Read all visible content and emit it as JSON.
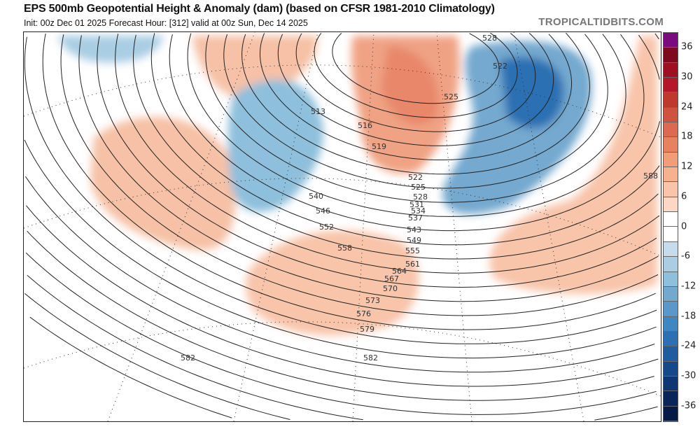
{
  "header": {
    "title": "EPS 500mb Geopotential Height & Anomaly (dam) (based on CFSR 1981-2010 Climatology)",
    "subtitle": "Init: 00z Dec 01 2025   Forecast Hour: [312]   valid at 00z Sun, Dec 14 2025",
    "brand": "TROPICALTIDBITS.COM"
  },
  "colorbar": {
    "ticks": [
      "36",
      "30",
      "24",
      "18",
      "12",
      "6",
      "0",
      "-6",
      "-12",
      "-18",
      "-24",
      "-30",
      "-36"
    ],
    "range": [
      -39,
      39
    ],
    "step": 3,
    "colors": [
      "#7b0a7e",
      "#7f0a1f",
      "#9e0f22",
      "#b5172a",
      "#c0392f",
      "#cf533f",
      "#dc6a52",
      "#e6825f",
      "#f09d78",
      "#f6b28f",
      "#f8c4aa",
      "#fcd8c4",
      "#ffffff",
      "#ffffff",
      "#c6dced",
      "#a9cde3",
      "#8ebfdc",
      "#74a9cf",
      "#5a98c9",
      "#3f87c0",
      "#2c6fb2",
      "#1f5ca0",
      "#15498a",
      "#0d3672",
      "#08265a",
      "#061a48"
    ]
  },
  "map": {
    "contour_labels": [
      "513",
      "516",
      "519",
      "522",
      "525",
      "528",
      "531",
      "534",
      "537",
      "543",
      "549",
      "555",
      "561",
      "564",
      "567",
      "570",
      "573",
      "576",
      "579",
      "540",
      "546",
      "552",
      "558",
      "582",
      "582",
      "588",
      "528",
      "522",
      "525"
    ],
    "anomaly_colors": {
      "warm": "#f6c1a6",
      "warm_strong": "#e8876a",
      "cool": "#a9cde3",
      "cool_strong": "#2c6fb2"
    }
  }
}
